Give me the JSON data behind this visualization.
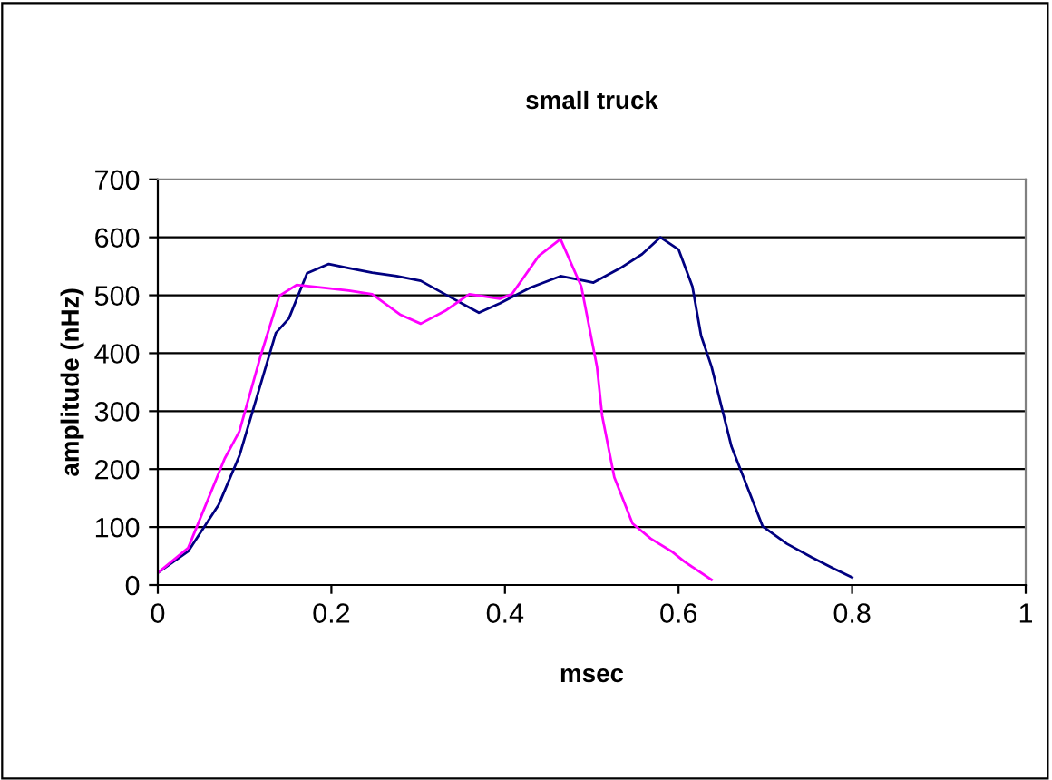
{
  "chart_data": {
    "type": "line",
    "title": "small truck",
    "xlabel": "msec",
    "ylabel": "amplitude (nHz)",
    "xlim": [
      0,
      1
    ],
    "xticks": [
      0,
      0.2,
      0.4,
      0.6,
      0.8,
      1
    ],
    "ylim": [
      0,
      700
    ],
    "yticks": [
      0,
      100,
      200,
      300,
      400,
      500,
      600,
      700
    ],
    "grid": "y",
    "legend": false,
    "marker": "none",
    "line_style": "solid",
    "series": [
      {
        "color": "#000080",
        "x": [
          0,
          0.035,
          0.07,
          0.094,
          0.136,
          0.151,
          0.172,
          0.197,
          0.22,
          0.247,
          0.275,
          0.303,
          0.338,
          0.37,
          0.394,
          0.429,
          0.464,
          0.492,
          0.502,
          0.533,
          0.558,
          0.579,
          0.6,
          0.616,
          0.626,
          0.638,
          0.661,
          0.697,
          0.725,
          0.753,
          0.778,
          0.8
        ],
        "values": [
          21,
          58,
          138,
          223,
          435,
          460,
          538,
          554,
          547,
          539,
          533,
          525,
          496,
          470,
          486,
          513,
          533,
          525,
          522,
          547,
          571,
          600,
          579,
          515,
          430,
          377,
          239,
          101,
          71,
          48,
          29,
          13
        ]
      },
      {
        "color": "#ff00ff",
        "x": [
          0,
          0.035,
          0.077,
          0.094,
          0.119,
          0.14,
          0.16,
          0.192,
          0.22,
          0.247,
          0.279,
          0.303,
          0.331,
          0.359,
          0.394,
          0.408,
          0.439,
          0.464,
          0.488,
          0.506,
          0.512,
          0.526,
          0.547,
          0.568,
          0.592,
          0.607,
          0.638
        ],
        "values": [
          21,
          64,
          218,
          265,
          398,
          499,
          518,
          513,
          508,
          502,
          467,
          451,
          473,
          502,
          494,
          502,
          568,
          597,
          515,
          377,
          292,
          186,
          106,
          80,
          58,
          40,
          9
        ]
      }
    ]
  }
}
